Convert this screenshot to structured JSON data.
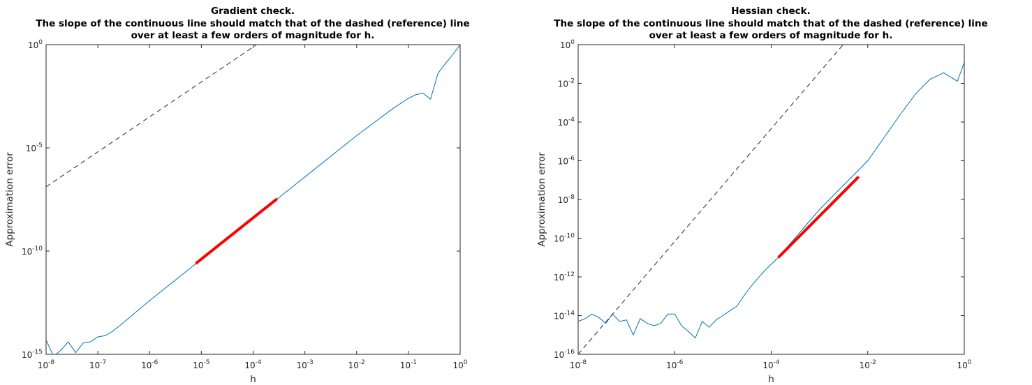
{
  "chart_data": [
    {
      "type": "line",
      "title": [
        "Gradient check.",
        "The slope of the continuous line should match that of the dashed (reference) line",
        "over at least a few orders of magnitude for h."
      ],
      "xlabel": "h",
      "ylabel": "Approximation error",
      "xscale": "log",
      "yscale": "log",
      "xlim": [
        1e-08,
        1
      ],
      "ylim": [
        1e-15,
        1
      ],
      "xticks": [
        {
          "base": "10",
          "exp": "-8",
          "value": 1e-08
        },
        {
          "base": "10",
          "exp": "-7",
          "value": 1e-07
        },
        {
          "base": "10",
          "exp": "-6",
          "value": 1e-06
        },
        {
          "base": "10",
          "exp": "-5",
          "value": 1e-05
        },
        {
          "base": "10",
          "exp": "-4",
          "value": 0.0001
        },
        {
          "base": "10",
          "exp": "-3",
          "value": 0.001
        },
        {
          "base": "10",
          "exp": "-2",
          "value": 0.01
        },
        {
          "base": "10",
          "exp": "-1",
          "value": 0.1
        },
        {
          "base": "10",
          "exp": "0",
          "value": 1
        }
      ],
      "yticks": [
        {
          "base": "10",
          "exp": "-15",
          "value": 1e-15
        },
        {
          "base": "10",
          "exp": "-10",
          "value": 1e-10
        },
        {
          "base": "10",
          "exp": "-5",
          "value": 1e-05
        },
        {
          "base": "10",
          "exp": "0",
          "value": 1
        }
      ],
      "colors": {
        "series": "#0072BD",
        "highlight": "#FF0000",
        "reference": "#262626"
      },
      "series": [
        {
          "role": "error",
          "style": "solid",
          "x": [
            1e-08,
            1.39e-08,
            1.93e-08,
            2.68e-08,
            3.73e-08,
            5.18e-08,
            7.2e-08,
            1e-07,
            1.39e-07,
            1.93e-07,
            2.68e-07,
            3.73e-07,
            5.18e-07,
            7.2e-07,
            1e-06,
            1e-05,
            0.0001,
            0.001,
            0.01,
            0.05,
            0.1,
            0.139,
            0.193,
            0.268,
            0.373,
            0.518,
            0.72,
            1
          ],
          "y": [
            5e-15,
            8e-16,
            1.6e-15,
            4e-15,
            1.2e-15,
            3.5e-15,
            4e-15,
            7e-15,
            8e-15,
            1.3e-14,
            2.5e-14,
            5e-14,
            1e-13,
            2e-13,
            4e-13,
            4e-11,
            3.9e-09,
            3.9e-07,
            3.9e-05,
            0.0008,
            0.0025,
            0.0038,
            0.0044,
            0.0023,
            0.04,
            0.12,
            0.33,
            1
          ]
        },
        {
          "role": "reference",
          "style": "dashed",
          "x": [
            1e-08,
            0.000117
          ],
          "y": [
            1.3e-07,
            1
          ]
        },
        {
          "role": "slope-segment",
          "style": "solid-thick",
          "x": [
            7.8e-06,
            0.00029
          ],
          "y": [
            2.5e-11,
            3.4e-08
          ]
        }
      ]
    },
    {
      "type": "line",
      "title": [
        "Hessian check.",
        "The slope of the continuous line should match that of the dashed (reference) line",
        "over at least a few orders of magnitude for h."
      ],
      "xlabel": "h",
      "ylabel": "Approximation error",
      "xscale": "log",
      "yscale": "log",
      "xlim": [
        1e-08,
        1
      ],
      "ylim": [
        1e-16,
        1
      ],
      "xticks": [
        {
          "base": "10",
          "exp": "-8",
          "value": 1e-08
        },
        {
          "base": "10",
          "exp": "-6",
          "value": 1e-06
        },
        {
          "base": "10",
          "exp": "-4",
          "value": 0.0001
        },
        {
          "base": "10",
          "exp": "-2",
          "value": 0.01
        },
        {
          "base": "10",
          "exp": "0",
          "value": 1
        }
      ],
      "yticks": [
        {
          "base": "10",
          "exp": "-16",
          "value": 1e-16
        },
        {
          "base": "10",
          "exp": "-14",
          "value": 1e-14
        },
        {
          "base": "10",
          "exp": "-12",
          "value": 1e-12
        },
        {
          "base": "10",
          "exp": "-10",
          "value": 1e-10
        },
        {
          "base": "10",
          "exp": "-8",
          "value": 1e-08
        },
        {
          "base": "10",
          "exp": "-6",
          "value": 1e-06
        },
        {
          "base": "10",
          "exp": "-4",
          "value": 0.0001
        },
        {
          "base": "10",
          "exp": "-2",
          "value": 0.01
        },
        {
          "base": "10",
          "exp": "0",
          "value": 1
        }
      ],
      "colors": {
        "series": "#0072BD",
        "highlight": "#FF0000",
        "reference": "#262626"
      },
      "series": [
        {
          "role": "error",
          "style": "solid",
          "x": [
            1e-08,
            1.39e-08,
            1.93e-08,
            2.68e-08,
            3.73e-08,
            5.18e-08,
            7.2e-08,
            1e-07,
            1.39e-07,
            1.93e-07,
            2.68e-07,
            3.73e-07,
            5.18e-07,
            7.2e-07,
            1e-06,
            1.39e-06,
            1.93e-06,
            2.68e-06,
            3.73e-06,
            5.18e-06,
            7.2e-06,
            1e-05,
            1.39e-05,
            1.93e-05,
            2.68e-05,
            3.73e-05,
            5.18e-05,
            7.2e-05,
            0.0001,
            0.00014,
            0.001,
            0.01,
            0.05,
            0.1,
            0.193,
            0.373,
            0.72,
            1
          ],
          "y": [
            5e-15,
            7e-15,
            1.2e-14,
            8e-15,
            4e-15,
            1.2e-14,
            5e-15,
            6e-15,
            1e-15,
            7e-15,
            4e-15,
            3e-15,
            4e-15,
            1.2e-14,
            1.2e-14,
            3e-15,
            1.5e-15,
            7e-16,
            5e-15,
            2.5e-15,
            6e-15,
            1e-14,
            1.8e-14,
            3e-14,
            1e-13,
            3e-13,
            8e-13,
            2e-12,
            4.5e-12,
            1e-11,
            3e-09,
            1e-06,
            0.0003,
            0.003,
            0.016,
            0.035,
            0.013,
            0.12
          ]
        },
        {
          "role": "reference",
          "style": "dashed",
          "x": [
            1e-08,
            0.0031
          ],
          "y": [
            1e-16,
            1
          ]
        },
        {
          "role": "slope-segment",
          "style": "solid-thick",
          "x": [
            0.00014,
            0.0065
          ],
          "y": [
            1e-11,
            1.5e-07
          ]
        }
      ]
    }
  ]
}
